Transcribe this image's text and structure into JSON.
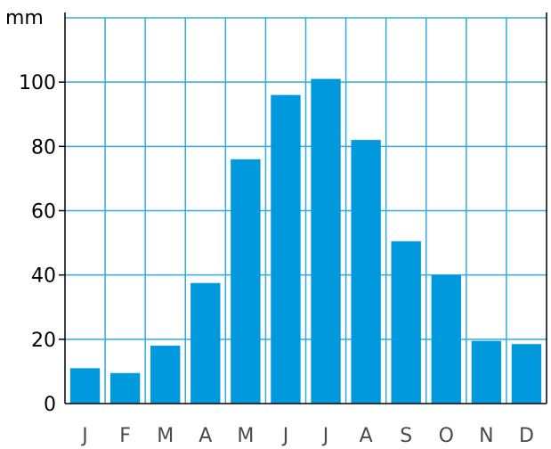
{
  "chart_data": {
    "type": "bar",
    "title": "",
    "xlabel": "",
    "ylabel": "mm",
    "categories": [
      "J",
      "F",
      "M",
      "A",
      "M",
      "J",
      "J",
      "A",
      "S",
      "O",
      "N",
      "D"
    ],
    "values": [
      11,
      9.5,
      18,
      37.5,
      76,
      96,
      101,
      82,
      50.5,
      40,
      19.5,
      18.5
    ],
    "ylim": [
      0,
      120
    ],
    "yticks": [
      0,
      20,
      40,
      60,
      80,
      100
    ],
    "grid": true,
    "legend": "none"
  },
  "colors": {
    "bar": "#0099dd",
    "grid": "#33aadd",
    "frame": "#000000",
    "axis_text": "#000000",
    "category_text": "#4a4a4a"
  }
}
